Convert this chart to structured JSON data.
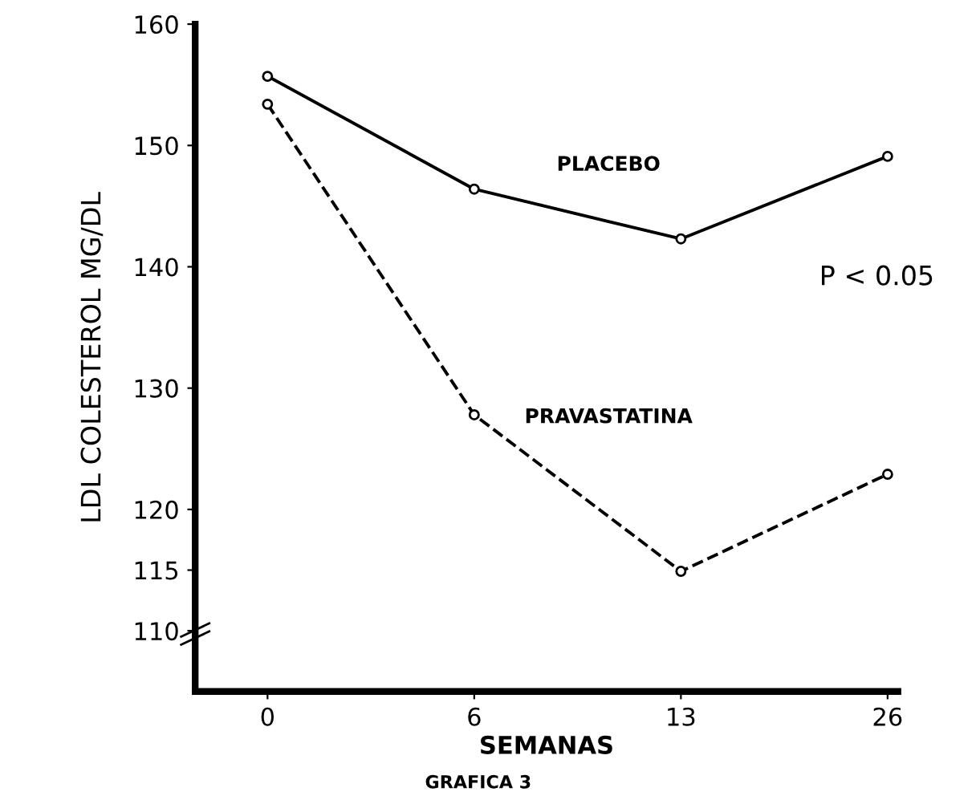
{
  "chart_data": {
    "type": "line",
    "xlabel": "SEMANAS",
    "ylabel": "LDL COLESTEROL MG/DL",
    "categories": [
      "0",
      "6",
      "13",
      "26"
    ],
    "series": [
      {
        "name": "PLACEBO",
        "color": "#000000",
        "values": [
          155.7,
          146.4,
          142.3,
          149.1
        ],
        "line_style": "solid"
      },
      {
        "name": "PRAVASTATINA",
        "color": "#000000",
        "values": [
          153.4,
          127.8,
          114.9,
          122.9
        ],
        "line_style": "dashed"
      }
    ],
    "ylim": [
      105,
      160
    ],
    "yticks": [
      110,
      115,
      120,
      130,
      140,
      150,
      160
    ],
    "marker": "circle",
    "grid": false,
    "legend": false,
    "annotations": [
      "P < 0.05",
      "GRAFICA 3"
    ]
  }
}
